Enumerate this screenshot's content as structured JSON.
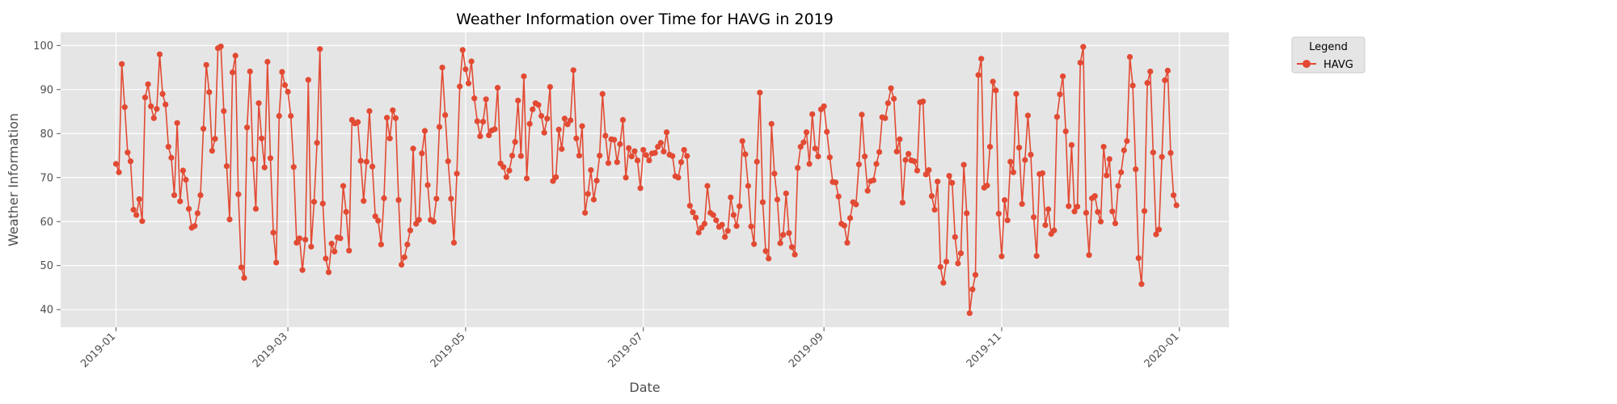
{
  "chart_data": {
    "type": "line",
    "title": "Weather Information over Time for HAVG in 2019",
    "xlabel": "Date",
    "ylabel": "Weather Information",
    "x_axis_type": "date",
    "xlim": [
      "2018-12-13",
      "2020-01-18"
    ],
    "ylim": [
      36,
      103
    ],
    "x_ticks": [
      "2019-01",
      "2019-03",
      "2019-05",
      "2019-07",
      "2019-09",
      "2019-11",
      "2020-01"
    ],
    "y_ticks": [
      40,
      50,
      60,
      70,
      80,
      90,
      100
    ],
    "grid": true,
    "legend": {
      "title": "Legend",
      "position": "outside top-right"
    },
    "colors": {
      "series": "#e24a33",
      "panel_background": "#e5e5e5",
      "grid": "#ffffff"
    },
    "marker": "circle",
    "series": [
      {
        "name": "HAVG",
        "start_date": "2019-01-01",
        "interval_days": 1,
        "values": [
          73.1,
          71.2,
          95.8,
          86.0,
          75.7,
          73.7,
          62.7,
          61.5,
          65.1,
          60.1,
          88.2,
          91.2,
          86.2,
          83.5,
          85.6,
          98.0,
          89.0,
          86.6,
          77.0,
          74.5,
          66.0,
          82.4,
          64.6,
          71.6,
          69.5,
          62.9,
          58.6,
          59.0,
          61.9,
          66.0,
          81.1,
          95.6,
          89.4,
          76.1,
          78.8,
          99.4,
          99.8,
          85.1,
          72.6,
          60.5,
          93.9,
          97.7,
          66.2,
          49.6,
          47.2,
          81.4,
          94.1,
          74.2,
          62.9,
          86.9,
          78.9,
          72.3,
          96.3,
          74.4,
          57.5,
          50.7,
          84.0,
          94.0,
          91.0,
          89.5,
          84.0,
          72.4,
          55.2,
          56.2,
          49.0,
          55.9,
          92.2,
          54.3,
          64.5,
          77.9,
          99.2,
          64.1,
          51.6,
          48.5,
          55.0,
          53.2,
          56.4,
          56.2,
          68.1,
          62.2,
          53.4,
          83.1,
          82.3,
          82.6,
          73.8,
          64.7,
          73.6,
          85.1,
          72.5,
          61.2,
          60.2,
          54.8,
          65.3,
          83.6,
          78.9,
          85.3,
          83.5,
          64.9,
          50.2,
          51.9,
          54.8,
          58.0,
          76.6,
          59.5,
          60.4,
          75.5,
          80.6,
          68.3,
          60.4,
          60.0,
          65.2,
          81.5,
          95.0,
          84.2,
          73.7,
          65.2,
          55.2,
          70.9,
          90.7,
          99.0,
          94.6,
          91.4,
          96.4,
          88.0,
          82.8,
          79.4,
          82.7,
          87.8,
          79.6,
          80.7,
          81.0,
          90.4,
          73.2,
          72.4,
          70.1,
          71.6,
          75.0,
          78.1,
          87.5,
          74.9,
          93.0,
          69.8,
          82.2,
          85.5,
          86.9,
          86.5,
          84.0,
          80.2,
          83.4,
          90.6,
          69.2,
          70.1,
          80.9,
          76.5,
          83.4,
          82.1,
          83.0,
          94.4,
          78.9,
          75.0,
          81.7,
          62.0,
          66.3,
          71.7,
          65.0,
          69.3,
          75.0,
          89.0,
          79.5,
          73.3,
          78.7,
          78.6,
          73.5,
          77.6,
          83.1,
          70.0,
          76.7,
          74.8,
          76.0,
          73.9,
          67.6,
          76.3,
          75.1,
          73.9,
          75.5,
          75.6,
          77.0,
          77.9,
          75.9,
          80.3,
          75.2,
          74.9,
          70.3,
          70.0,
          73.5,
          76.3,
          74.9,
          63.6,
          62.1,
          60.9,
          57.5,
          58.6,
          59.5,
          68.1,
          62.0,
          61.5,
          60.3,
          58.8,
          59.3,
          56.5,
          57.9,
          65.5,
          61.5,
          59.0,
          63.5,
          78.3,
          75.3,
          68.1,
          58.9,
          54.9,
          73.6,
          89.3,
          64.4,
          53.3,
          51.6,
          82.2,
          70.9,
          65.0,
          55.1,
          57.0,
          66.4,
          57.4,
          54.2,
          52.5,
          72.2,
          77.0,
          78.0,
          80.3,
          73.1,
          84.4,
          76.6,
          74.8,
          85.5,
          86.2,
          80.4,
          74.6,
          69.0,
          68.9,
          65.7,
          59.5,
          59.1,
          55.2,
          60.8,
          64.4,
          63.9,
          73.0,
          84.3,
          74.8,
          67.0,
          69.2,
          69.4,
          73.1,
          75.8,
          83.7,
          83.5,
          86.9,
          90.3,
          87.9,
          75.9,
          78.7,
          64.3,
          74.0,
          75.4,
          73.9,
          73.7,
          71.6,
          87.1,
          87.3,
          70.7,
          71.7,
          65.8,
          62.7,
          69.1,
          49.7,
          46.1,
          50.9,
          70.4,
          68.8,
          56.5,
          50.5,
          52.8,
          72.9,
          61.9,
          39.2,
          44.6,
          47.9,
          93.3,
          97.0,
          67.7,
          68.2,
          77.0,
          91.8,
          89.8,
          61.8,
          52.1,
          64.9,
          60.3,
          73.6,
          71.2,
          89.0,
          76.8,
          64.0,
          74.0,
          84.1,
          75.2,
          61.0,
          52.2,
          70.8,
          71.0,
          59.2,
          62.8,
          57.2,
          58.0,
          83.8,
          88.9,
          93.0,
          80.5,
          63.5,
          77.4,
          62.3,
          63.4,
          96.1,
          99.7,
          62.0,
          52.4,
          65.3,
          65.8,
          62.2,
          60.0,
          77.0,
          70.5,
          74.2,
          62.3,
          59.6,
          68.1,
          71.2,
          76.2,
          78.3,
          97.4,
          90.9,
          71.9,
          51.7,
          45.8,
          62.4,
          91.5,
          94.1,
          75.7,
          57.1,
          58.2,
          74.7,
          92.1,
          94.3,
          75.6,
          66.0,
          63.7
        ]
      }
    ]
  }
}
